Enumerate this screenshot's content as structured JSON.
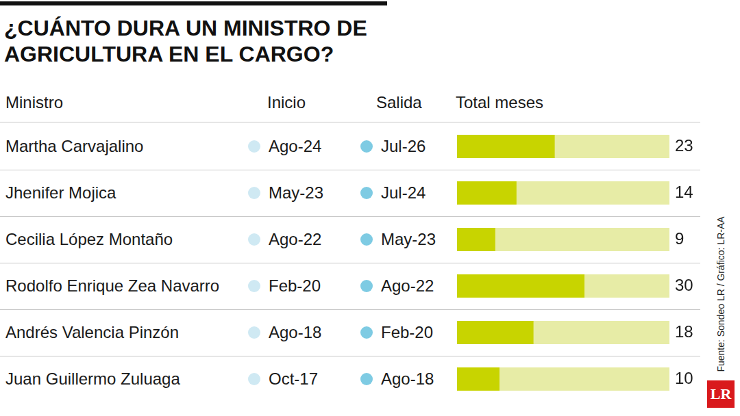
{
  "chart_data": {
    "type": "bar",
    "orientation": "horizontal",
    "title": "¿CUÁNTO DURA UN MINISTRO DE AGRICULTURA EN EL CARGO?",
    "columns": [
      "Ministro",
      "Inicio",
      "Salida",
      "Total meses"
    ],
    "categories": [
      "Martha Carvajalino",
      "Jhenifer Mojica",
      "Cecilia López Montaño",
      "Rodolfo Enrique Zea Navarro",
      "Andrés Valencia Pinzón",
      "Juan Guillermo Zuluaga"
    ],
    "start": [
      "Ago-24",
      "May-23",
      "Ago-22",
      "Feb-20",
      "Ago-18",
      "Oct-17"
    ],
    "end": [
      "Jul-26",
      "Jul-24",
      "May-23",
      "Ago-22",
      "Feb-20",
      "Ago-18"
    ],
    "values": [
      23,
      14,
      9,
      30,
      18,
      10
    ],
    "color": "#c8d400",
    "xlim": [
      0,
      50
    ],
    "tick_labels": false,
    "grid": false,
    "data_labels": true,
    "source": "Fuente: Sondeo LR / Gráfico: LR-AA",
    "logo": "LR"
  }
}
